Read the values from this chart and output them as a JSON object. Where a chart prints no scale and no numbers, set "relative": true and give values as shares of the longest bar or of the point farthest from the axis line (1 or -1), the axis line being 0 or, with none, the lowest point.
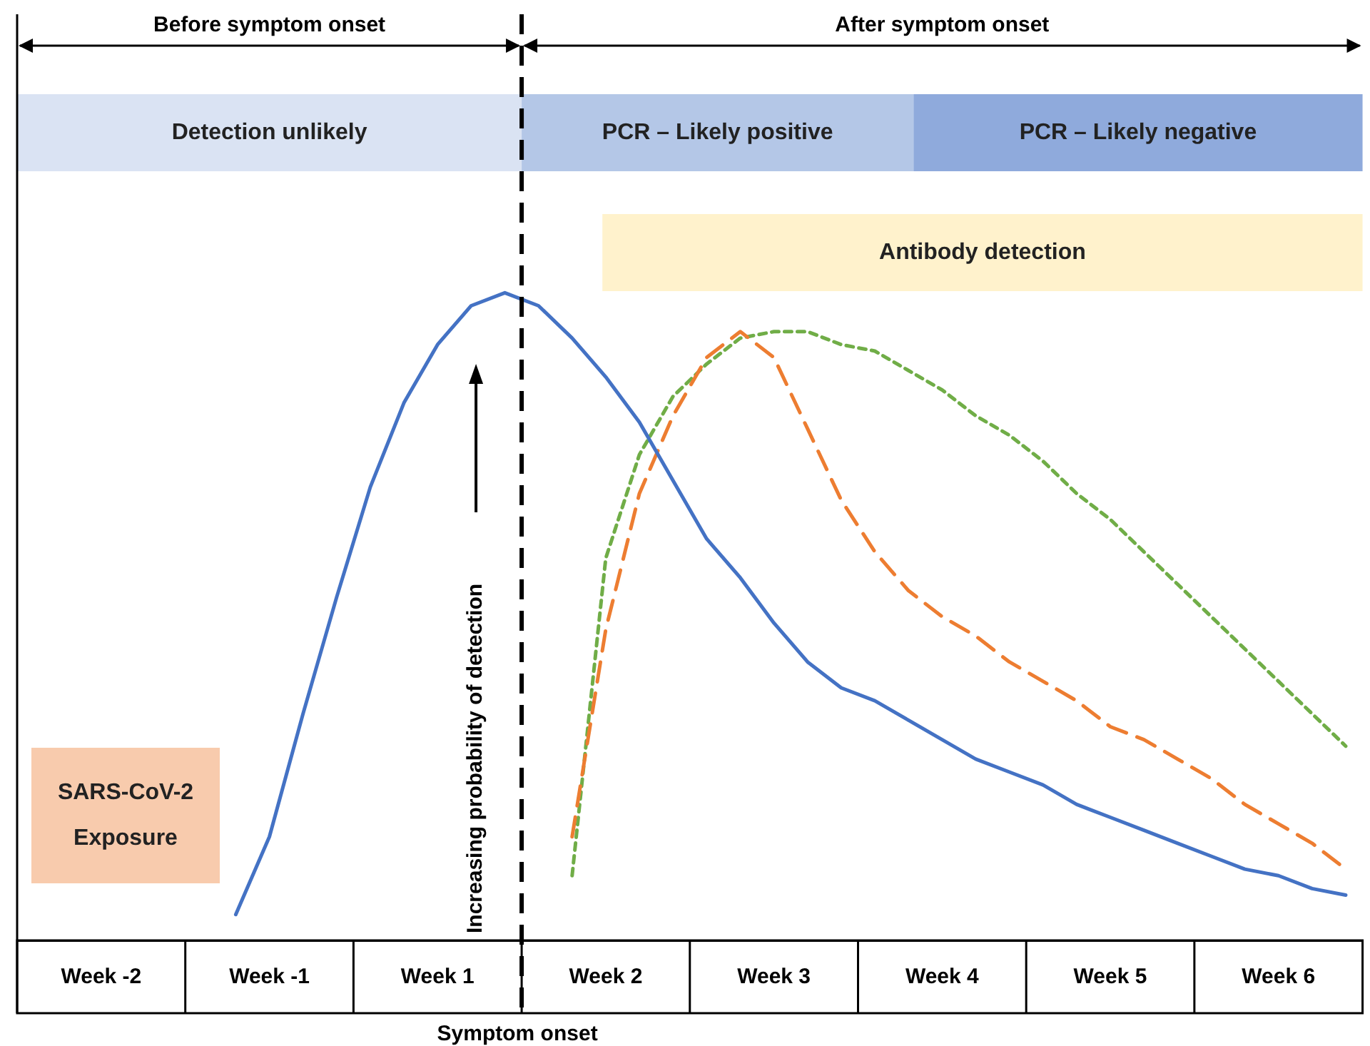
{
  "chart_data": {
    "type": "line",
    "relative": true,
    "ylabel": "Increasing probability of detection",
    "categories": [
      null,
      null,
      "Week -2",
      null,
      null,
      null,
      null,
      "Week -1",
      null,
      null,
      null,
      null,
      "Week 1",
      null,
      null,
      null,
      null,
      "Week 2",
      null,
      null,
      null,
      null,
      "Week 3",
      null,
      null,
      null,
      null,
      "Week 4",
      null,
      null,
      null,
      null,
      "Week 5",
      null,
      null,
      null,
      null,
      "Week 6",
      null,
      null
    ],
    "series": [
      {
        "color": "#4472c4",
        "line_style": "solid",
        "values": [
          null,
          null,
          null,
          null,
          null,
          null,
          0.04,
          0.16,
          0.35,
          0.53,
          0.7,
          0.83,
          0.92,
          0.98,
          1,
          0.98,
          0.93,
          0.87,
          0.8,
          0.71,
          0.62,
          0.56,
          0.49,
          0.43,
          0.39,
          0.37,
          0.34,
          0.31,
          0.28,
          0.26,
          0.24,
          0.21,
          0.19,
          0.17,
          0.15,
          0.13,
          0.11,
          0.1,
          0.08,
          0.07
        ]
      },
      {
        "color": "#ed7d31",
        "line_style": "dashed",
        "values": [
          null,
          null,
          null,
          null,
          null,
          null,
          null,
          null,
          null,
          null,
          null,
          null,
          null,
          null,
          null,
          null,
          0.16,
          0.48,
          0.69,
          0.81,
          0.9,
          0.94,
          0.9,
          0.79,
          0.68,
          0.6,
          0.54,
          0.5,
          0.47,
          0.43,
          0.4,
          0.37,
          0.33,
          0.31,
          0.28,
          0.25,
          0.21,
          0.18,
          0.15,
          0.11
        ]
      },
      {
        "color": "#70ad47",
        "line_style": "dotted",
        "values": [
          null,
          null,
          null,
          null,
          null,
          null,
          null,
          null,
          null,
          null,
          null,
          null,
          null,
          null,
          null,
          null,
          0.1,
          0.59,
          0.75,
          0.84,
          0.89,
          0.93,
          0.94,
          0.94,
          0.92,
          0.91,
          0.88,
          0.85,
          0.81,
          0.78,
          0.74,
          0.69,
          0.65,
          0.6,
          0.55,
          0.5,
          0.45,
          0.4,
          0.35,
          0.3
        ]
      }
    ],
    "annotations": [
      "Before symptom onset",
      "After symptom onset",
      "Detection unlikely",
      "PCR – Likely positive",
      "PCR – Likely negative",
      "Antibody detection",
      "SARS-CoV-2 Exposure",
      "Symptom onset"
    ]
  }
}
